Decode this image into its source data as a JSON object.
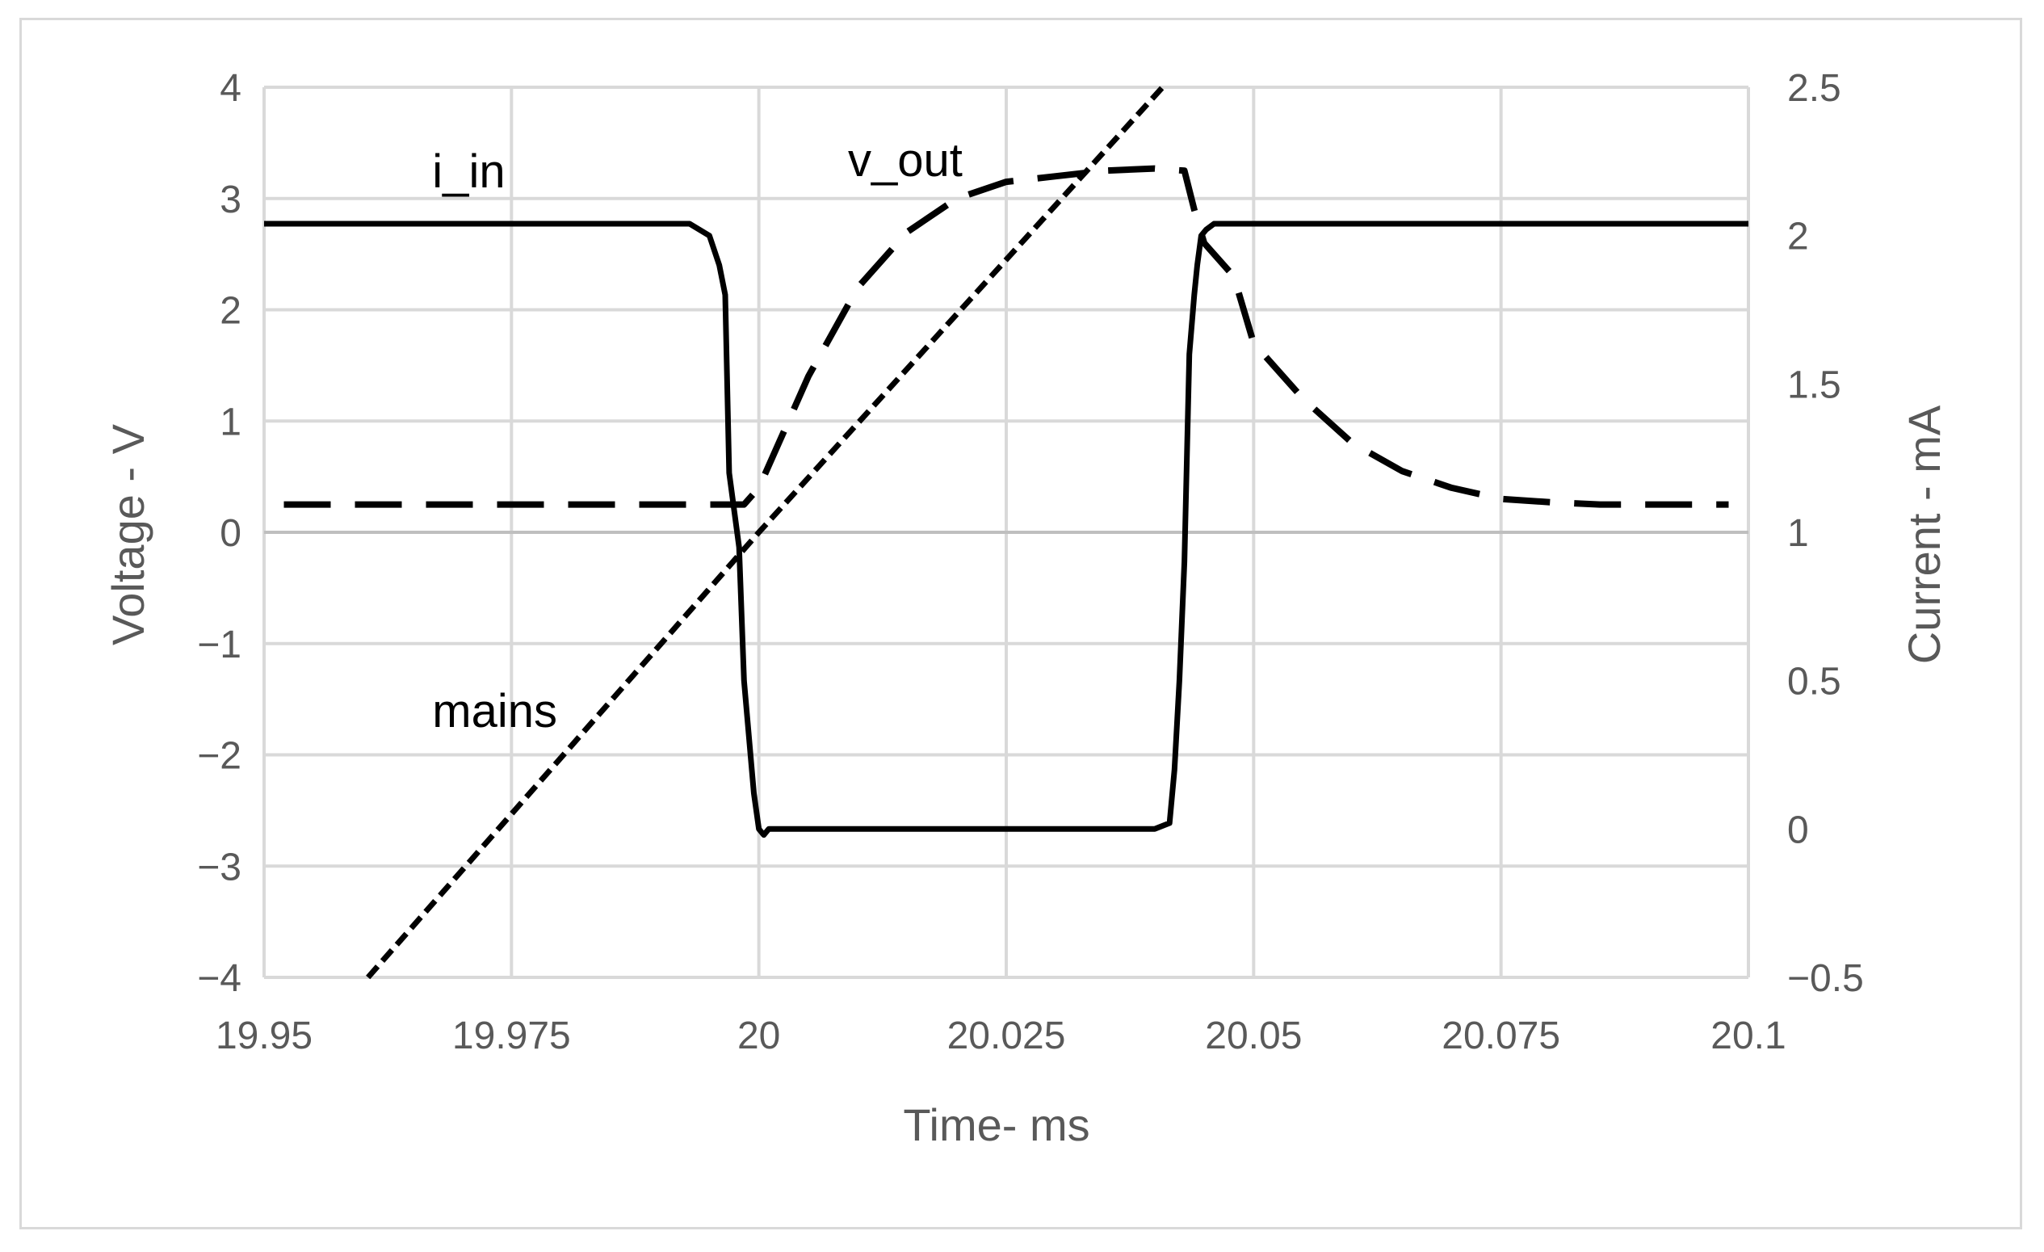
{
  "chart_data": {
    "type": "line",
    "xlabel": "Time- ms",
    "ylabel_left": "Voltage - V",
    "ylabel_right": "Current - mA",
    "xlim": [
      19.95,
      20.1
    ],
    "ylim_left": [
      -4,
      4
    ],
    "ylim_right": [
      -0.5,
      2.5
    ],
    "x_ticks": [
      "19.95",
      "19.975",
      "20",
      "20.025",
      "20.05",
      "20.075",
      "20.1"
    ],
    "y_left_ticks": [
      "4",
      "3",
      "2",
      "1",
      "0",
      "−1",
      "−2",
      "−3",
      "−4"
    ],
    "y_right_ticks": [
      "2.5",
      "2",
      "1.5",
      "1",
      "0.5",
      "0",
      "−0.5"
    ],
    "grid": true,
    "series": [
      {
        "name": "i_in",
        "axis": "right",
        "style": "solid",
        "color": "#000000",
        "x": [
          19.95,
          19.993,
          19.995,
          19.996,
          19.9966,
          19.997,
          19.998,
          19.9985,
          19.9995,
          20.0,
          20.0005,
          20.001,
          20.002,
          20.03,
          20.04,
          20.0415,
          20.042,
          20.0425,
          20.043,
          20.0435,
          20.044,
          20.0443,
          20.0447,
          20.0452,
          20.046,
          20.1
        ],
        "y": [
          2.04,
          2.04,
          2.0,
          1.9,
          1.8,
          1.2,
          0.95,
          0.5,
          0.12,
          0.0,
          -0.02,
          0.0,
          0.0,
          0.0,
          0.0,
          0.02,
          0.2,
          0.5,
          0.9,
          1.6,
          1.8,
          1.9,
          2.0,
          2.02,
          2.04,
          2.04
        ]
      },
      {
        "name": "v_out",
        "axis": "left",
        "style": "dashed",
        "color": "#000000",
        "x": [
          19.952,
          19.9985,
          20.0,
          20.002,
          20.005,
          20.01,
          20.015,
          20.02,
          20.025,
          20.03,
          20.035,
          20.04,
          20.043,
          20.044,
          20.045,
          20.048,
          20.05,
          20.055,
          20.06,
          20.065,
          20.07,
          20.075,
          20.08,
          20.085,
          20.09,
          20.095,
          20.098
        ],
        "y": [
          0.25,
          0.25,
          0.4,
          0.8,
          1.4,
          2.2,
          2.7,
          3.0,
          3.15,
          3.2,
          3.25,
          3.27,
          3.25,
          2.9,
          2.6,
          2.3,
          1.7,
          1.2,
          0.8,
          0.55,
          0.4,
          0.3,
          0.27,
          0.25,
          0.25,
          0.25,
          0.25
        ]
      },
      {
        "name": "mains",
        "axis": "left",
        "style": "dotted",
        "color": "#000000",
        "x": [
          19.9605,
          20.0,
          20.0408
        ],
        "y": [
          -4.0,
          0.0,
          4.0
        ]
      }
    ],
    "annotations": [
      {
        "text": "i_in",
        "x": 19.967,
        "y": 3.1,
        "axis": "left"
      },
      {
        "text": "v_out",
        "x": 20.009,
        "y": 3.2,
        "axis": "left"
      },
      {
        "text": "mains",
        "x": 19.967,
        "y": -1.75,
        "axis": "left"
      }
    ]
  }
}
